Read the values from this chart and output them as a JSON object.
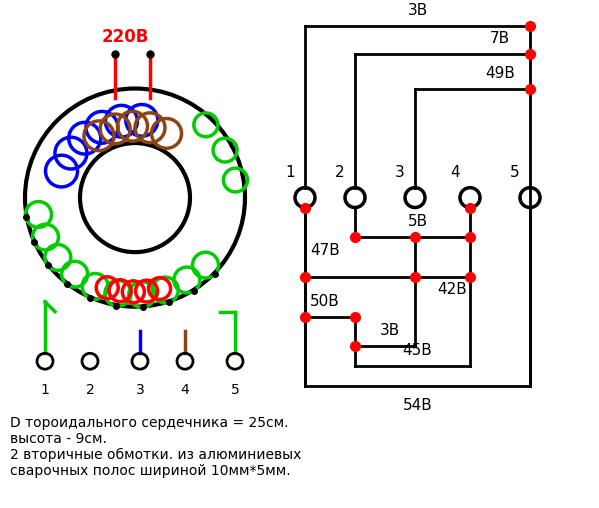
{
  "title": "",
  "bg_color": "#ffffff",
  "text_color": "#000000",
  "red_color": "#ff0000",
  "green_color": "#00cc00",
  "blue_color": "#0000ff",
  "brown_color": "#8B4513",
  "black_color": "#000000",
  "annotation_text": "D тороидального сердечника = 25см.\nвысота - 9см.\n2 вторичные обмотки. из алюминиевых\nсварочных полос шириной 10мм*5мм.",
  "label_220": "220В",
  "terminals": [
    "1",
    "2",
    "3",
    "4",
    "5"
  ],
  "voltage_labels": {
    "3V_top": "3В",
    "7V": "7В",
    "49V": "49В",
    "5V": "5В",
    "47V": "47В",
    "50V": "50В",
    "3V_mid": "3В",
    "42V": "42В",
    "45V": "45В",
    "54V": "54В"
  }
}
